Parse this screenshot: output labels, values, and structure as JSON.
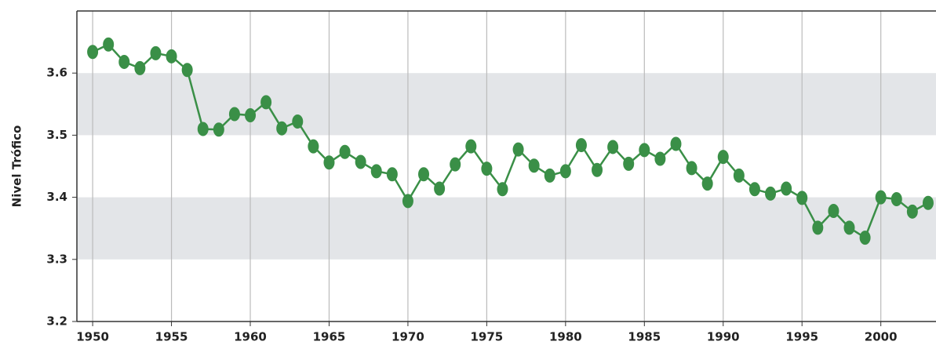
{
  "chart_data": {
    "type": "line",
    "y_label": "Nivel Trófico",
    "x": [
      1950,
      1951,
      1952,
      1953,
      1954,
      1955,
      1956,
      1957,
      1958,
      1959,
      1960,
      1961,
      1962,
      1963,
      1964,
      1965,
      1966,
      1967,
      1968,
      1969,
      1970,
      1971,
      1972,
      1973,
      1974,
      1975,
      1976,
      1977,
      1978,
      1979,
      1980,
      1981,
      1982,
      1983,
      1984,
      1985,
      1986,
      1987,
      1988,
      1989,
      1990,
      1991,
      1992,
      1993,
      1994,
      1995,
      1996,
      1997,
      1998,
      1999,
      2000,
      2001,
      2002,
      2003
    ],
    "values": [
      3.634,
      3.646,
      3.618,
      3.608,
      3.632,
      3.627,
      3.605,
      3.51,
      3.509,
      3.534,
      3.532,
      3.553,
      3.511,
      3.522,
      3.482,
      3.456,
      3.473,
      3.457,
      3.442,
      3.437,
      3.394,
      3.437,
      3.414,
      3.453,
      3.482,
      3.446,
      3.413,
      3.477,
      3.451,
      3.435,
      3.442,
      3.484,
      3.444,
      3.481,
      3.454,
      3.476,
      3.462,
      3.486,
      3.447,
      3.422,
      3.465,
      3.435,
      3.413,
      3.406,
      3.414,
      3.399,
      3.351,
      3.378,
      3.351,
      3.335,
      3.4,
      3.397,
      3.377,
      3.391
    ],
    "color": "#3a8f47",
    "xlim": [
      1949,
      2003.5
    ],
    "xticks": [
      1950,
      1955,
      1960,
      1965,
      1970,
      1975,
      1980,
      1985,
      1990,
      1995,
      2000
    ],
    "ylim": [
      3.2,
      3.7
    ],
    "yticks": [
      3.2,
      3.3,
      3.4,
      3.5,
      3.6
    ],
    "grid": true
  }
}
